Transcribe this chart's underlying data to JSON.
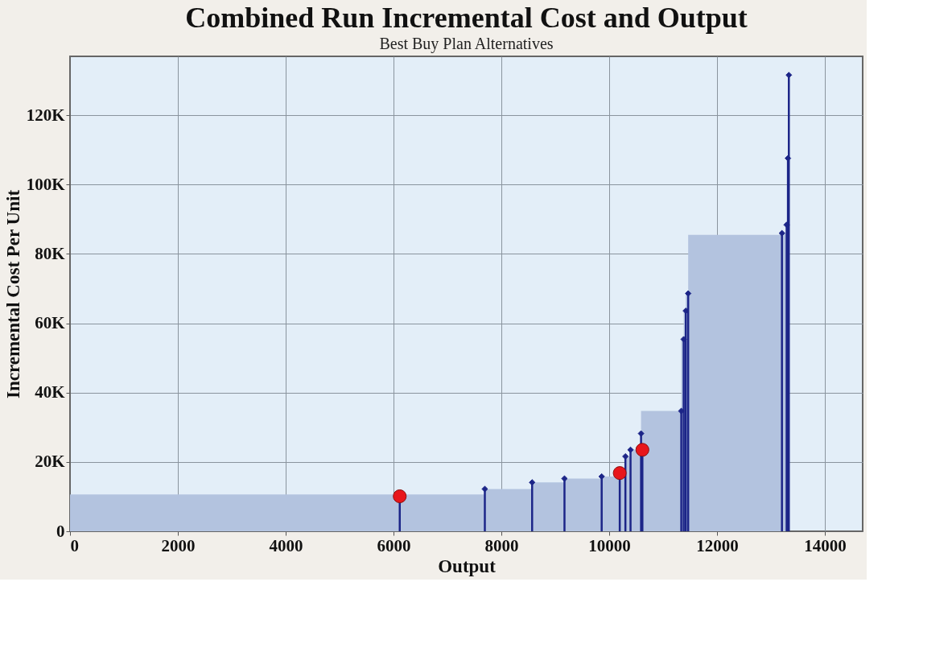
{
  "chart_data": {
    "type": "step",
    "title": "Combined Run Incremental Cost and Output",
    "subtitle": "Best Buy Plan Alternatives",
    "xlabel": "Output",
    "ylabel": "Incremental Cost Per Unit",
    "xlim": [
      0,
      14700
    ],
    "xticks": [
      0,
      2000,
      4000,
      6000,
      8000,
      10000,
      12000,
      14000
    ],
    "ylim": [
      0,
      137000
    ],
    "yticks": [
      0,
      {
        "value": 20000,
        "label": "20K"
      },
      {
        "value": 40000,
        "label": "40K"
      },
      {
        "value": 60000,
        "label": "60K"
      },
      {
        "value": 80000,
        "label": "80K"
      },
      {
        "value": 100000,
        "label": "100K"
      },
      {
        "value": 120000,
        "label": "120K"
      }
    ],
    "grid": true,
    "series": [
      {
        "type": "area",
        "color": "#b3c3df",
        "x": [
          0,
          7693,
          8570,
          9170,
          9860,
          10250,
          10300,
          10395,
          10590,
          11336,
          11381,
          11420,
          11464,
          13203,
          13290
        ],
        "values": [
          10600,
          12200,
          14100,
          15200,
          15800,
          17800,
          21600,
          23500,
          34700,
          55400,
          63600,
          68600,
          85500,
          86000,
          88400
        ]
      },
      {
        "type": "lollipop",
        "color": "#1c2588",
        "marker": "diamond",
        "x": [
          7693,
          8570,
          9170,
          9860,
          10300,
          10395,
          10590,
          11336,
          11381,
          11420,
          11464,
          13203,
          13290,
          13314,
          13331
        ],
        "values": [
          12200,
          14100,
          15200,
          15800,
          21600,
          23500,
          28200,
          34700,
          55400,
          63600,
          68600,
          86000,
          88400,
          107600,
          131600
        ]
      },
      {
        "type": "lollipop",
        "color": "#e8161b",
        "marker": "circle",
        "x": [
          6115,
          10195,
          10615
        ],
        "values": [
          10100,
          16800,
          23500
        ]
      }
    ]
  }
}
